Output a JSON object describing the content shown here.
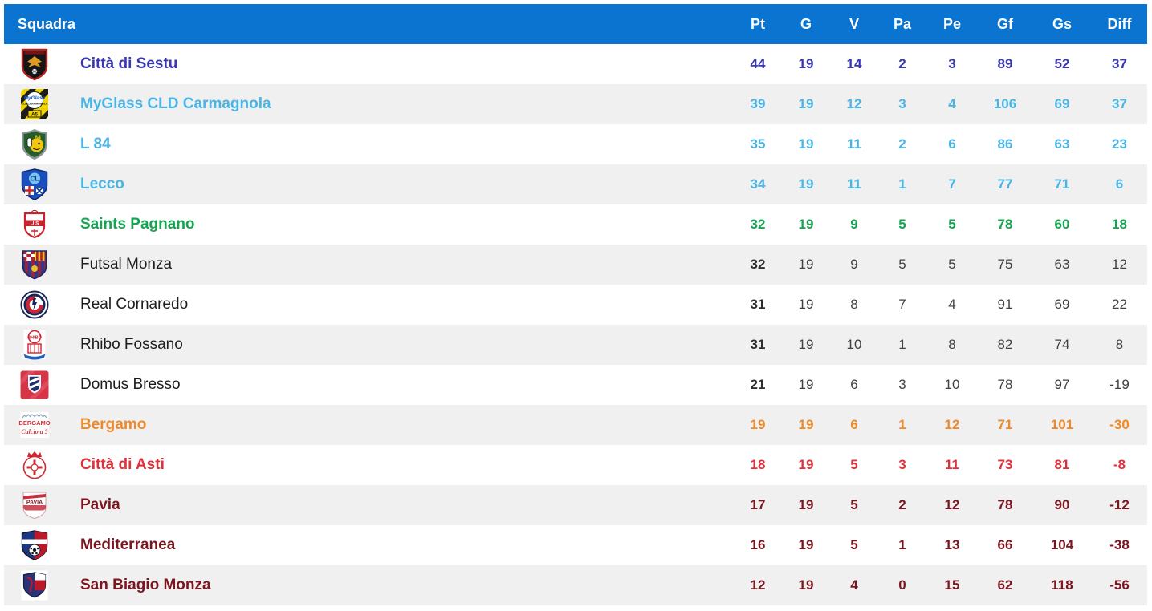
{
  "table": {
    "columns": [
      "Squadra",
      "Pt",
      "G",
      "V",
      "Pa",
      "Pe",
      "Gf",
      "Gs",
      "Diff"
    ],
    "rows": [
      {
        "team": "Città di Sestu",
        "tone": "indigo",
        "crest": "sestu",
        "stats": [
          44,
          19,
          14,
          2,
          3,
          89,
          52,
          37
        ]
      },
      {
        "team": "MyGlass CLD Carmagnola",
        "tone": "sky",
        "crest": "myglass",
        "stats": [
          39,
          19,
          12,
          3,
          4,
          106,
          69,
          37
        ]
      },
      {
        "team": "L 84",
        "tone": "sky",
        "crest": "l84",
        "stats": [
          35,
          19,
          11,
          2,
          6,
          86,
          63,
          23
        ]
      },
      {
        "team": "Lecco",
        "tone": "sky",
        "crest": "lecco",
        "stats": [
          34,
          19,
          11,
          1,
          7,
          77,
          71,
          6
        ]
      },
      {
        "team": "Saints Pagnano",
        "tone": "green",
        "crest": "saints",
        "stats": [
          32,
          19,
          9,
          5,
          5,
          78,
          60,
          18
        ]
      },
      {
        "team": "Futsal Monza",
        "tone": "neutral",
        "crest": "futsalmonza",
        "stats": [
          32,
          19,
          9,
          5,
          5,
          75,
          63,
          12
        ]
      },
      {
        "team": "Real Cornaredo",
        "tone": "neutral",
        "crest": "cornaredo",
        "stats": [
          31,
          19,
          8,
          7,
          4,
          91,
          69,
          22
        ]
      },
      {
        "team": "Rhibo Fossano",
        "tone": "neutral",
        "crest": "fossano",
        "stats": [
          31,
          19,
          10,
          1,
          8,
          82,
          74,
          8
        ]
      },
      {
        "team": "Domus Bresso",
        "tone": "neutral",
        "crest": "bresso",
        "stats": [
          21,
          19,
          6,
          3,
          10,
          78,
          97,
          -19
        ]
      },
      {
        "team": "Bergamo",
        "tone": "orange",
        "crest": "bergamo",
        "stats": [
          19,
          19,
          6,
          1,
          12,
          71,
          101,
          -30
        ]
      },
      {
        "team": "Città di Asti",
        "tone": "red",
        "crest": "asti",
        "stats": [
          18,
          19,
          5,
          3,
          11,
          73,
          81,
          -8
        ]
      },
      {
        "team": "Pavia",
        "tone": "maroon",
        "crest": "pavia",
        "stats": [
          17,
          19,
          5,
          2,
          12,
          78,
          90,
          -12
        ]
      },
      {
        "team": "Mediterranea",
        "tone": "maroon",
        "crest": "mediterranea",
        "stats": [
          16,
          19,
          5,
          1,
          13,
          66,
          104,
          -38
        ]
      },
      {
        "team": "San Biagio Monza",
        "tone": "maroon",
        "crest": "sanbiagio",
        "stats": [
          12,
          19,
          4,
          0,
          15,
          62,
          118,
          -56
        ]
      }
    ]
  },
  "colors": {
    "header-bg": "#0b74d1",
    "row-alt-bg": "#f0f0f0",
    "tone-indigo": "#3a37b2",
    "tone-sky": "#4ab5e4",
    "tone-green": "#17a452",
    "tone-orange": "#ef8929",
    "tone-red": "#e0303a",
    "tone-maroon": "#7b1621"
  }
}
